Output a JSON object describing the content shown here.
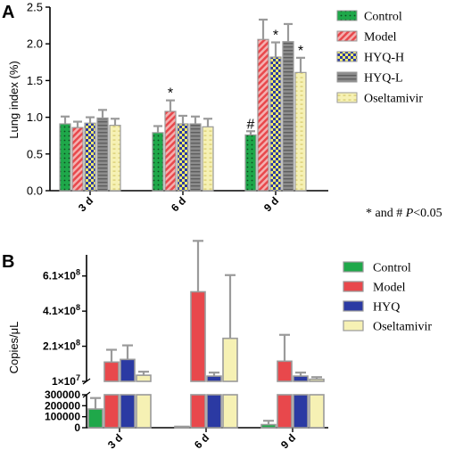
{
  "footnote": {
    "prefix": "* and # ",
    "p": "P",
    "suffix": "<0.05"
  },
  "colors": {
    "control": "#1fa84a",
    "model": "#e8484c",
    "hyq_h": "#f2ec6a",
    "hyq_l": "#8c8c8c",
    "hyq": "#2b3aa3",
    "oseltamivir": "#f6f1b4",
    "bar_edge": "#9a9a9a"
  },
  "chart_data": [
    {
      "type": "bar",
      "panel_label": "A",
      "ylabel": "Lung index (%)",
      "ylim": [
        0,
        2.5
      ],
      "yticks": [
        "0.0",
        "0.5",
        "1.0",
        "1.5",
        "2.0",
        "2.5"
      ],
      "categories": [
        "3 d",
        "6 d",
        "9 d"
      ],
      "legend_position": "right",
      "series": [
        {
          "name": "Control",
          "values": [
            0.91,
            0.79,
            0.76
          ],
          "errors": [
            0.1,
            0.09,
            0.05
          ],
          "marks": [
            "",
            "",
            "#"
          ],
          "pattern": "dots",
          "color_key": "control"
        },
        {
          "name": "Model",
          "values": [
            0.86,
            1.08,
            2.06
          ],
          "errors": [
            0.08,
            0.15,
            0.27
          ],
          "marks": [
            "",
            "*",
            ""
          ],
          "pattern": "diagonal",
          "color_key": "model"
        },
        {
          "name": "HYQ-H",
          "values": [
            0.92,
            0.91,
            1.82
          ],
          "errors": [
            0.08,
            0.11,
            0.2
          ],
          "marks": [
            "",
            "",
            "*"
          ],
          "pattern": "checker",
          "color_key": "hyq_h"
        },
        {
          "name": "HYQ-L",
          "values": [
            0.99,
            0.91,
            2.03
          ],
          "errors": [
            0.11,
            0.1,
            0.24
          ],
          "marks": [
            "",
            "",
            ""
          ],
          "pattern": "horizontal",
          "color_key": "hyq_l"
        },
        {
          "name": "Oseltamivir",
          "values": [
            0.89,
            0.87,
            1.61
          ],
          "errors": [
            0.09,
            0.11,
            0.2
          ],
          "marks": [
            "",
            "",
            "*"
          ],
          "pattern": "dashes",
          "color_key": "oseltamivir"
        }
      ]
    },
    {
      "type": "bar",
      "panel_label": "B",
      "ylabel": "Copies/μL",
      "axis_break": true,
      "ylim_lower": [
        0,
        300000
      ],
      "yticks_lower": [
        "0",
        "100000",
        "200000",
        "300000"
      ],
      "ylim_upper": [
        10000000,
        700000000
      ],
      "yticks_upper": [
        {
          "value": 10000000,
          "mant": "1",
          "exp": "7"
        },
        {
          "value": 210000000,
          "mant": "2.1",
          "exp": "8"
        },
        {
          "value": 410000000,
          "mant": "4.1",
          "exp": "8"
        },
        {
          "value": 610000000,
          "mant": "6.1",
          "exp": "8"
        }
      ],
      "categories": [
        "3 d",
        "6 d",
        "9 d"
      ],
      "legend_position": "right",
      "series": [
        {
          "name": "Control",
          "values": [
            170000,
            12000,
            28000
          ],
          "errors": [
            100000,
            0,
            35000
          ],
          "color_key": "control"
        },
        {
          "name": "Model",
          "values": [
            120000000,
            520000000,
            125000000
          ],
          "errors": [
            70000000,
            290000000,
            150000000
          ],
          "color_key": "model"
        },
        {
          "name": "HYQ",
          "values": [
            135000000,
            40000000,
            40000000
          ],
          "errors": [
            80000000,
            20000000,
            20000000
          ],
          "color_key": "hyq"
        },
        {
          "name": "Oseltamivir",
          "values": [
            45000000,
            255000000,
            22000000
          ],
          "errors": [
            20000000,
            360000000,
            12000000
          ],
          "color_key": "oseltamivir"
        }
      ]
    }
  ]
}
